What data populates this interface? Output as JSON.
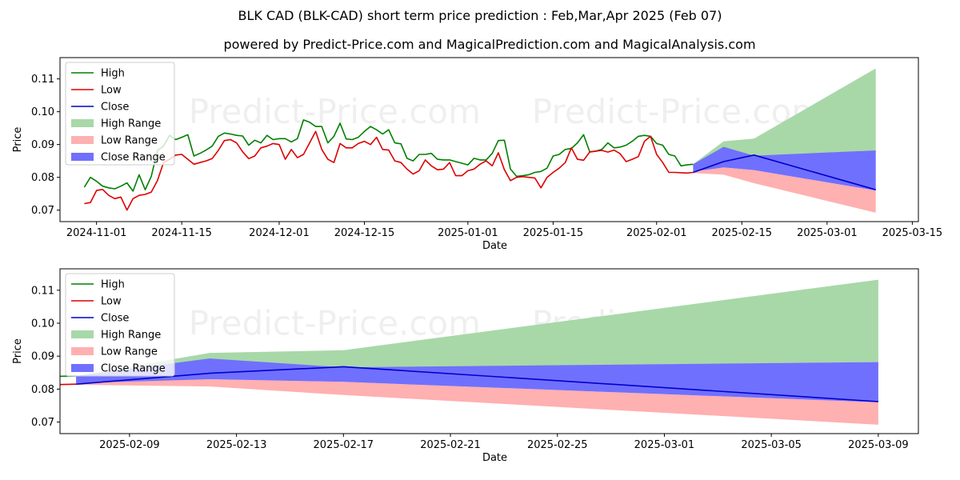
{
  "title": "BLK CAD (BLK-CAD) short term price prediction : Feb,Mar,Apr 2025 (Feb 07)",
  "subtitle": "powered by Predict-Price.com and MagicalPrediction.com and MagicalAnalysis.com",
  "watermark": "Predict-Price.com",
  "colors": {
    "high": "#008000",
    "low": "#dd0000",
    "close": "#0000cc",
    "high_range": "#a8d8a8",
    "low_range": "#ffb0b0",
    "close_range": "#7070ff"
  },
  "chart_data": [
    {
      "type": "line",
      "xlabel": "Date",
      "ylabel": "Price",
      "xlim": [
        "2024-10-26",
        "2025-03-16"
      ],
      "ylim": [
        0.0665,
        0.1165
      ],
      "yticks": [
        0.07,
        0.08,
        0.09,
        0.1,
        0.11
      ],
      "ytick_labels": [
        "0.07",
        "0.08",
        "0.09",
        "0.10",
        "0.11"
      ],
      "xticks": [
        "2024-11-01",
        "2024-11-15",
        "2024-12-01",
        "2024-12-15",
        "2025-01-01",
        "2025-01-15",
        "2025-02-01",
        "2025-02-15",
        "2025-03-01",
        "2025-03-15"
      ],
      "legend": [
        "High",
        "Low",
        "Close",
        "High Range",
        "Low Range",
        "Close Range"
      ],
      "legend_position": "upper-left",
      "history_dates": [
        "2024-10-30",
        "2024-10-31",
        "2024-11-01",
        "2024-11-02",
        "2024-11-03",
        "2024-11-04",
        "2024-11-05",
        "2024-11-06",
        "2024-11-07",
        "2024-11-08",
        "2024-11-09",
        "2024-11-10",
        "2024-11-11",
        "2024-11-12",
        "2024-11-13",
        "2024-11-14",
        "2024-11-15",
        "2024-11-16",
        "2024-11-17",
        "2024-11-18",
        "2024-11-19",
        "2024-11-20",
        "2024-11-21",
        "2024-11-22",
        "2024-11-23",
        "2024-11-24",
        "2024-11-25",
        "2024-11-26",
        "2024-11-27",
        "2024-11-28",
        "2024-11-29",
        "2024-11-30",
        "2024-12-01",
        "2024-12-02",
        "2024-12-03",
        "2024-12-04",
        "2024-12-05",
        "2024-12-06",
        "2024-12-07",
        "2024-12-08",
        "2024-12-09",
        "2024-12-10",
        "2024-12-11",
        "2024-12-12",
        "2024-12-13",
        "2024-12-14",
        "2024-12-15",
        "2024-12-16",
        "2024-12-17",
        "2024-12-18",
        "2024-12-19",
        "2024-12-20",
        "2024-12-21",
        "2024-12-22",
        "2024-12-23",
        "2024-12-24",
        "2024-12-25",
        "2024-12-26",
        "2024-12-27",
        "2024-12-28",
        "2024-12-29",
        "2024-12-30",
        "2024-12-31",
        "2025-01-01",
        "2025-01-02",
        "2025-01-03",
        "2025-01-04",
        "2025-01-05",
        "2025-01-06",
        "2025-01-07",
        "2025-01-08",
        "2025-01-09",
        "2025-01-10",
        "2025-01-11",
        "2025-01-12",
        "2025-01-13",
        "2025-01-14",
        "2025-01-15",
        "2025-01-16",
        "2025-01-17",
        "2025-01-18",
        "2025-01-19",
        "2025-01-20",
        "2025-01-21",
        "2025-01-22",
        "2025-01-23",
        "2025-01-24",
        "2025-01-25",
        "2025-01-26",
        "2025-01-27",
        "2025-01-28",
        "2025-01-29",
        "2025-01-30",
        "2025-01-31",
        "2025-02-01",
        "2025-02-02",
        "2025-02-03",
        "2025-02-04",
        "2025-02-05",
        "2025-02-06",
        "2025-02-07"
      ],
      "series": [
        {
          "name": "High",
          "values": [
            0.077,
            0.08,
            0.0788,
            0.0773,
            0.0768,
            0.0765,
            0.0773,
            0.0783,
            0.0758,
            0.0808,
            0.0762,
            0.0803,
            0.0882,
            0.0895,
            0.0928,
            0.0915,
            0.0922,
            0.093,
            0.0865,
            0.0873,
            0.0883,
            0.0895,
            0.0925,
            0.0935,
            0.0932,
            0.0928,
            0.0926,
            0.0898,
            0.0913,
            0.0905,
            0.0928,
            0.0915,
            0.0918,
            0.0918,
            0.0908,
            0.0918,
            0.0975,
            0.0968,
            0.0955,
            0.0955,
            0.0905,
            0.0925,
            0.0965,
            0.0917,
            0.0915,
            0.0922,
            0.094,
            0.0955,
            0.0945,
            0.0932,
            0.0945,
            0.0905,
            0.0902,
            0.0858,
            0.085,
            0.087,
            0.087,
            0.0873,
            0.0855,
            0.0853,
            0.0853,
            0.0848,
            0.0843,
            0.0838,
            0.0858,
            0.0853,
            0.0853,
            0.0873,
            0.0912,
            0.0913,
            0.0825,
            0.0803,
            0.0805,
            0.0808,
            0.0815,
            0.0818,
            0.0828,
            0.0865,
            0.087,
            0.0885,
            0.0888,
            0.0905,
            0.093,
            0.0878,
            0.088,
            0.0885,
            0.0905,
            0.089,
            0.0892,
            0.0898,
            0.091,
            0.0925,
            0.0928,
            0.0925,
            0.0903,
            0.0898,
            0.087,
            0.0865,
            0.0835,
            0.0838,
            0.084
          ]
        },
        {
          "name": "Low",
          "values": [
            0.072,
            0.0723,
            0.076,
            0.0763,
            0.0745,
            0.0735,
            0.074,
            0.07,
            0.0735,
            0.0745,
            0.0748,
            0.0755,
            0.079,
            0.0845,
            0.0855,
            0.0868,
            0.087,
            0.0855,
            0.084,
            0.0845,
            0.085,
            0.0857,
            0.0882,
            0.0912,
            0.0915,
            0.0905,
            0.0878,
            0.0857,
            0.0865,
            0.089,
            0.0895,
            0.0903,
            0.09,
            0.0855,
            0.0885,
            0.086,
            0.087,
            0.0905,
            0.094,
            0.0885,
            0.0855,
            0.0845,
            0.0903,
            0.089,
            0.089,
            0.0903,
            0.091,
            0.09,
            0.0922,
            0.0885,
            0.0883,
            0.085,
            0.0845,
            0.0825,
            0.081,
            0.082,
            0.0853,
            0.0835,
            0.0823,
            0.0825,
            0.0845,
            0.0805,
            0.0805,
            0.082,
            0.0825,
            0.084,
            0.085,
            0.0835,
            0.0875,
            0.0823,
            0.079,
            0.08,
            0.0802,
            0.08,
            0.0798,
            0.0768,
            0.08,
            0.0815,
            0.0828,
            0.0845,
            0.089,
            0.0855,
            0.0852,
            0.0877,
            0.088,
            0.0882,
            0.0877,
            0.0883,
            0.0872,
            0.0848,
            0.0855,
            0.0863,
            0.091,
            0.0925,
            0.087,
            0.0845,
            0.0815,
            0.0815,
            0.0814,
            0.0813,
            0.0815
          ]
        }
      ],
      "forecast": {
        "dates": [
          "2025-02-07",
          "2025-02-12",
          "2025-02-17",
          "2025-03-09"
        ],
        "close": [
          0.0815,
          0.0848,
          0.0868,
          0.0762
        ],
        "high_range_upper": [
          0.084,
          0.091,
          0.0918,
          0.1132
        ],
        "high_range_lower": [
          0.083,
          0.089,
          0.0865,
          0.0882
        ],
        "close_range_upper": [
          0.084,
          0.0893,
          0.0866,
          0.0882
        ],
        "close_range_lower": [
          0.0818,
          0.083,
          0.0822,
          0.076
        ],
        "low_range_upper": [
          0.0823,
          0.083,
          0.0822,
          0.076
        ],
        "low_range_lower": [
          0.0813,
          0.0808,
          0.0782,
          0.0692
        ]
      }
    },
    {
      "type": "line",
      "xlabel": "Date",
      "ylabel": "Price",
      "xlim": [
        "2025-02-06.4",
        "2025-03-10.5"
      ],
      "ylim": [
        0.0665,
        0.1165
      ],
      "yticks": [
        0.07,
        0.08,
        0.09,
        0.1,
        0.11
      ],
      "ytick_labels": [
        "0.07",
        "0.08",
        "0.09",
        "0.10",
        "0.11"
      ],
      "xticks": [
        "2025-02-09",
        "2025-02-13",
        "2025-02-17",
        "2025-02-21",
        "2025-02-25",
        "2025-03-01",
        "2025-03-05",
        "2025-03-09"
      ],
      "legend": [
        "High",
        "Low",
        "Close",
        "High Range",
        "Low Range",
        "Close Range"
      ],
      "legend_position": "upper-left"
    }
  ]
}
